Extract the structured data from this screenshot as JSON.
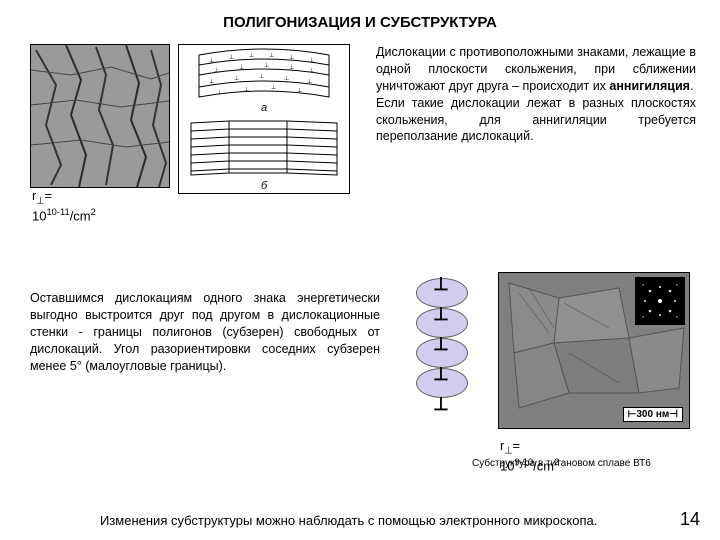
{
  "title": "ПОЛИГОНИЗАЦИЯ  И  СУБСТРУКТУРА",
  "rho1_html": "r<sub>⊥</sub>=<br>10<sup>10-11</sup>/cm<sup>2</sup>",
  "text1_html": "Дислокации с противоположными знаками, лежащие в одной плоскости скольжения, при сближении уничтожают друг друга – происходит их <b>аннигиляция</b>.<br>Если такие дислокации лежат в разных плоскостях скольжения, для аннигиляции требуется переползание дислокаций.",
  "text2": "Оставшимся дислокациям одного знака энергетически выгодно выстроится друг под другом в дислокационные стенки - границы полигонов (субзерен) свободных от дислокаций. Угол разориентировки соседних субзерен менее 5° (малоугловые границы).",
  "rho2_html": "r<sub>⊥</sub>=<br>10<sup>9-10</sup>/cm<sup>2</sup>",
  "caption2": "Субструктура в титановом сплаве ВТ6",
  "bottom": "Изменения субструктуры можно наблюдать с помощью электронного микроскопа.",
  "page": "14",
  "scale": "300 нм",
  "diagram": {
    "label_a": "а",
    "label_b": "б",
    "t_glyph": "⊥"
  },
  "colors": {
    "ellipse_fill": "#c0b8e8",
    "micrograph_bg": "#808080"
  }
}
